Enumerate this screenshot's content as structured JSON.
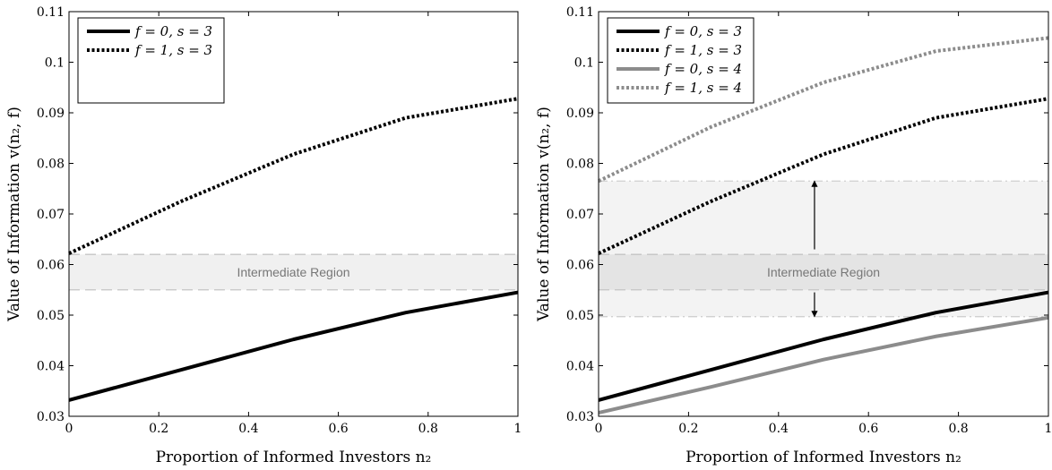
{
  "chart_data": [
    {
      "type": "line",
      "xlabel": "Proportion of Informed Investors n₂",
      "ylabel": "Value of Information v(n₂, f)",
      "xlim": [
        0,
        1
      ],
      "ylim": [
        0.03,
        0.11
      ],
      "xticks": [
        "0",
        "0.2",
        "0.4",
        "0.6",
        "0.8",
        "1"
      ],
      "yticks": [
        "0.03",
        "0.04",
        "0.05",
        "0.06",
        "0.07",
        "0.08",
        "0.09",
        "0.1",
        "0.11"
      ],
      "grid": false,
      "legend_position": "top-left",
      "series": [
        {
          "name": "f = 0, s = 3",
          "color": "#000000",
          "style": "solid",
          "x": [
            0,
            0.25,
            0.5,
            0.75,
            1
          ],
          "y": [
            0.0332,
            0.0392,
            0.0452,
            0.0505,
            0.0545
          ]
        },
        {
          "name": "f = 1, s = 3",
          "color": "#000000",
          "style": "dotted",
          "x": [
            0,
            0.25,
            0.5,
            0.75,
            1
          ],
          "y": [
            0.0622,
            0.0725,
            0.0818,
            0.089,
            0.0928
          ]
        }
      ],
      "regions": [
        {
          "label": "Intermediate Region",
          "y0": 0.055,
          "y1": 0.062
        }
      ]
    },
    {
      "type": "line",
      "xlabel": "Proportion of Informed Investors n₂",
      "ylabel": "Value of Information v(n₂, f)",
      "xlim": [
        0,
        1
      ],
      "ylim": [
        0.03,
        0.11
      ],
      "xticks": [
        "0",
        "0.2",
        "0.4",
        "0.6",
        "0.8",
        "1"
      ],
      "yticks": [
        "0.03",
        "0.04",
        "0.05",
        "0.06",
        "0.07",
        "0.08",
        "0.09",
        "0.1",
        "0.11"
      ],
      "grid": false,
      "legend_position": "top-left",
      "series": [
        {
          "name": "f = 0, s = 3",
          "color": "#000000",
          "style": "solid",
          "x": [
            0,
            0.25,
            0.5,
            0.75,
            1
          ],
          "y": [
            0.0332,
            0.0392,
            0.0452,
            0.0505,
            0.0545
          ]
        },
        {
          "name": "f = 1, s = 3",
          "color": "#000000",
          "style": "dotted",
          "x": [
            0,
            0.25,
            0.5,
            0.75,
            1
          ],
          "y": [
            0.0622,
            0.0725,
            0.0818,
            0.089,
            0.0928
          ]
        },
        {
          "name": "f = 0, s = 4",
          "color": "#8c8c8c",
          "style": "solid",
          "x": [
            0,
            0.25,
            0.5,
            0.75,
            1
          ],
          "y": [
            0.0307,
            0.0358,
            0.0412,
            0.0458,
            0.0495
          ]
        },
        {
          "name": "f = 1, s = 4",
          "color": "#8c8c8c",
          "style": "dotted",
          "x": [
            0,
            0.25,
            0.5,
            0.75,
            1
          ],
          "y": [
            0.0765,
            0.0872,
            0.096,
            0.1022,
            0.1048
          ]
        }
      ],
      "regions": [
        {
          "label": "",
          "y0": 0.0497,
          "y1": 0.0765
        },
        {
          "label": "Intermediate Region",
          "y0": 0.055,
          "y1": 0.062
        }
      ],
      "arrows": [
        {
          "x": 0.48,
          "from": 0.063,
          "to": 0.0765
        },
        {
          "x": 0.48,
          "from": 0.0545,
          "to": 0.0497
        }
      ]
    }
  ]
}
